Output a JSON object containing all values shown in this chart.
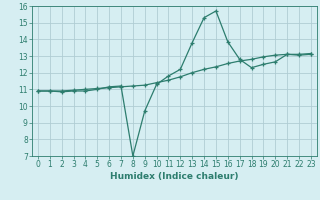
{
  "xlabel": "Humidex (Indice chaleur)",
  "ylabel": "",
  "background_color": "#d6eef2",
  "line_color": "#2d7d6e",
  "grid_color": "#b0cdd4",
  "xlim": [
    -0.5,
    23.5
  ],
  "ylim": [
    7,
    16
  ],
  "xticks": [
    0,
    1,
    2,
    3,
    4,
    5,
    6,
    7,
    8,
    9,
    10,
    11,
    12,
    13,
    14,
    15,
    16,
    17,
    18,
    19,
    20,
    21,
    22,
    23
  ],
  "yticks": [
    7,
    8,
    9,
    10,
    11,
    12,
    13,
    14,
    15,
    16
  ],
  "series1_x": [
    0,
    1,
    2,
    3,
    4,
    5,
    6,
    7,
    8,
    9,
    10,
    11,
    12,
    13,
    14,
    15,
    16,
    17,
    18,
    19,
    20,
    21,
    22,
    23
  ],
  "series1_y": [
    10.9,
    10.9,
    10.85,
    10.9,
    10.9,
    11.0,
    11.15,
    11.2,
    7.0,
    9.7,
    11.3,
    11.8,
    12.2,
    13.8,
    15.3,
    15.7,
    13.85,
    12.8,
    12.3,
    12.5,
    12.65,
    13.1,
    13.05,
    13.1
  ],
  "series2_x": [
    0,
    1,
    2,
    3,
    4,
    5,
    6,
    7,
    8,
    9,
    10,
    11,
    12,
    13,
    14,
    15,
    16,
    17,
    18,
    19,
    20,
    21,
    22,
    23
  ],
  "series2_y": [
    10.9,
    10.9,
    10.9,
    10.95,
    11.0,
    11.05,
    11.1,
    11.15,
    11.2,
    11.25,
    11.4,
    11.55,
    11.75,
    12.0,
    12.2,
    12.35,
    12.55,
    12.7,
    12.8,
    12.95,
    13.05,
    13.1,
    13.1,
    13.15
  ]
}
